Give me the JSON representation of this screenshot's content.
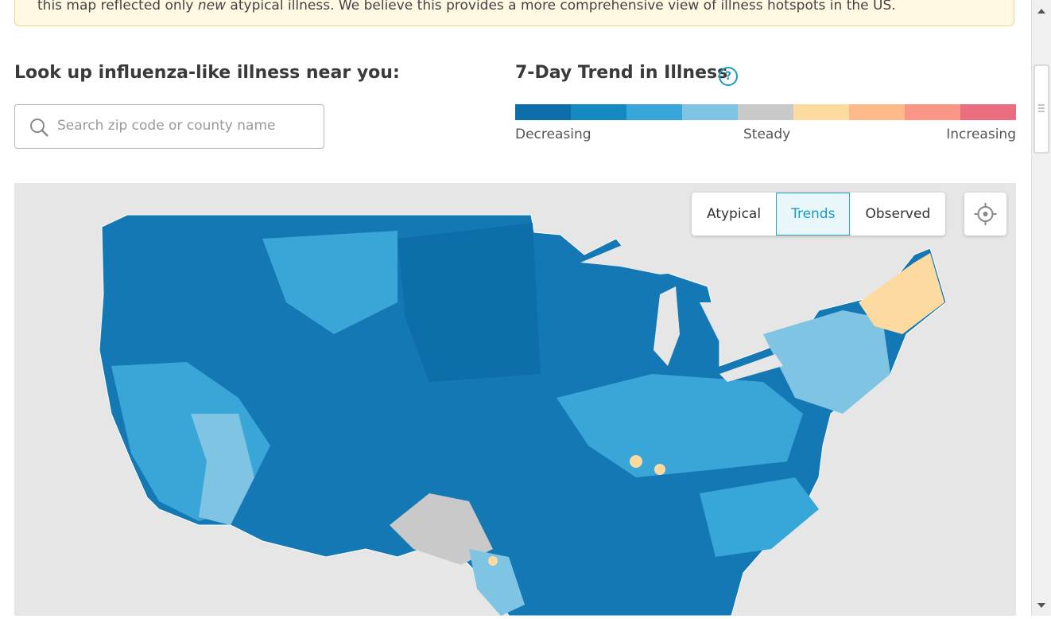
{
  "banner": {
    "before": "this map reflected only ",
    "emphasis": "new",
    "after": " atypical illness. We believe this provides a more comprehensive view of illness hotspots in the US."
  },
  "lookup": {
    "title": "Look up influenza-like illness near you:",
    "placeholder": "Search zip code or county name"
  },
  "legend": {
    "title": "7-Day Trend in Illness",
    "help_icon": "?",
    "colors": [
      "#0d6ea9",
      "#1489c2",
      "#37a6d9",
      "#7fc5e3",
      "#c9c9c9",
      "#fddba0",
      "#fdba88",
      "#f99685",
      "#ea6e80"
    ],
    "labels": [
      "Decreasing",
      "Steady",
      "Increasing"
    ]
  },
  "map_controls": {
    "buttons": [
      "Atypical",
      "Trends",
      "Observed"
    ],
    "active": "Trends"
  }
}
